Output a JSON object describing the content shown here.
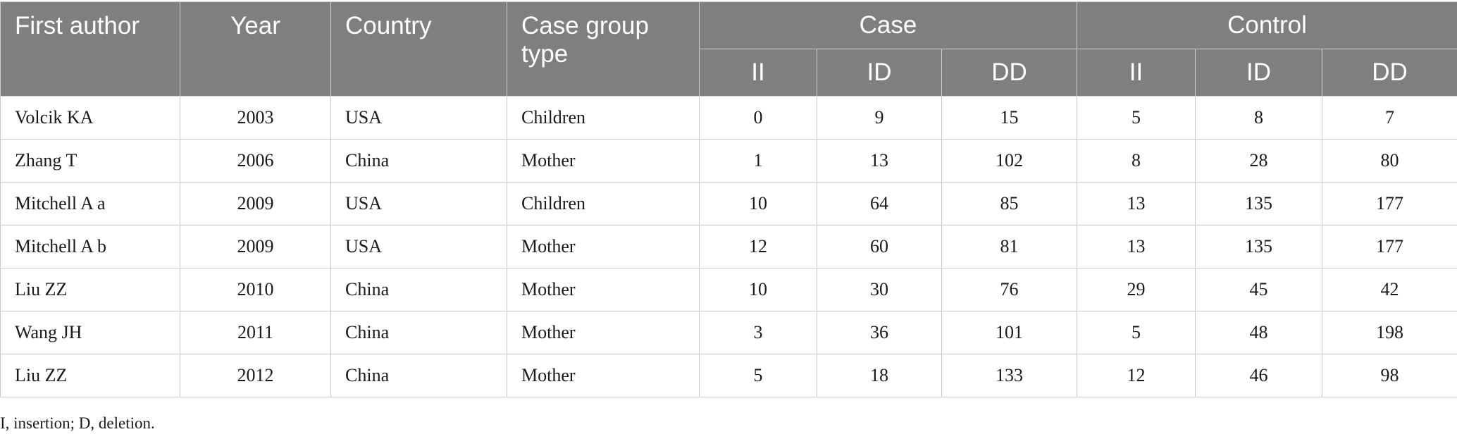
{
  "table": {
    "headers": {
      "first_author": "First author",
      "year": "Year",
      "country": "Country",
      "case_group_type": "Case group type",
      "case": "Case",
      "control": "Control",
      "case_sub": [
        "II",
        "ID",
        "DD"
      ],
      "control_sub": [
        "II",
        "ID",
        "DD"
      ]
    },
    "rows": [
      {
        "author": "Volcik KA",
        "year": "2003",
        "country": "USA",
        "type": "Children",
        "case": [
          "0",
          "9",
          "15"
        ],
        "control": [
          "5",
          "8",
          "7"
        ]
      },
      {
        "author": "Zhang T",
        "year": "2006",
        "country": "China",
        "type": "Mother",
        "case": [
          "1",
          "13",
          "102"
        ],
        "control": [
          "8",
          "28",
          "80"
        ]
      },
      {
        "author": "Mitchell A a",
        "year": "2009",
        "country": "USA",
        "type": "Children",
        "case": [
          "10",
          "64",
          "85"
        ],
        "control": [
          "13",
          "135",
          "177"
        ]
      },
      {
        "author": "Mitchell A b",
        "year": "2009",
        "country": "USA",
        "type": "Mother",
        "case": [
          "12",
          "60",
          "81"
        ],
        "control": [
          "13",
          "135",
          "177"
        ]
      },
      {
        "author": "Liu ZZ",
        "year": "2010",
        "country": "China",
        "type": "Mother",
        "case": [
          "10",
          "30",
          "76"
        ],
        "control": [
          "29",
          "45",
          "42"
        ]
      },
      {
        "author": "Wang JH",
        "year": "2011",
        "country": "China",
        "type": "Mother",
        "case": [
          "3",
          "36",
          "101"
        ],
        "control": [
          "5",
          "48",
          "198"
        ]
      },
      {
        "author": "Liu ZZ",
        "year": "2012",
        "country": "China",
        "type": "Mother",
        "case": [
          "5",
          "18",
          "133"
        ],
        "control": [
          "12",
          "46",
          "98"
        ]
      }
    ]
  },
  "footnote": "I, insertion; D, deletion.",
  "colors": {
    "header_bg": "#7f7f7f",
    "header_text": "#ffffff",
    "grid": "#c8c8c8"
  }
}
